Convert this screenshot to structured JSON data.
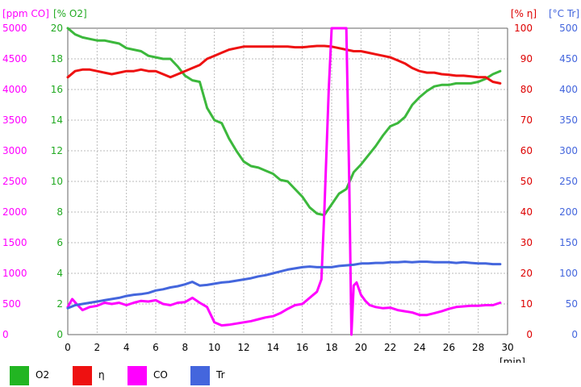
{
  "chart_data": {
    "type": "line",
    "xlabel": "[min]",
    "xlim": [
      0,
      30
    ],
    "x_ticks": [
      "0",
      "2",
      "4",
      "6",
      "8",
      "10",
      "12",
      "14",
      "16",
      "18",
      "20",
      "22",
      "24",
      "26",
      "28",
      "30"
    ],
    "axes": {
      "co": {
        "label": "[ppm CO]",
        "lim": [
          0,
          5000
        ],
        "ticks": [
          "0",
          "500",
          "1000",
          "1500",
          "2000",
          "2500",
          "3000",
          "3500",
          "4000",
          "4500",
          "5000"
        ],
        "color": "#ff00ff"
      },
      "o2": {
        "label": "[% O2]",
        "lim": [
          0,
          20
        ],
        "ticks": [
          "0",
          "2",
          "4",
          "6",
          "8",
          "10",
          "12",
          "14",
          "16",
          "18",
          "20"
        ],
        "color": "#22aa22"
      },
      "eta": {
        "label": "[% η]",
        "lim": [
          0,
          100
        ],
        "ticks": [
          "0",
          "10",
          "20",
          "30",
          "40",
          "50",
          "60",
          "70",
          "80",
          "90",
          "100"
        ],
        "color": "#dd0000"
      },
      "tr": {
        "label": "[°C Tr]",
        "lim": [
          0,
          500
        ],
        "ticks": [
          "0",
          "50",
          "100",
          "150",
          "200",
          "250",
          "300",
          "350",
          "400",
          "450",
          "500"
        ],
        "color": "#4466dd"
      }
    },
    "grid": true,
    "series": [
      {
        "name": "O2",
        "axis": "o2",
        "color": "#3cb83c",
        "x": [
          0,
          0.5,
          1,
          1.5,
          2,
          2.5,
          3,
          3.5,
          4,
          4.5,
          5,
          5.5,
          6,
          6.5,
          7,
          7.5,
          8,
          8.5,
          9,
          9.5,
          10,
          10.5,
          11,
          11.5,
          12,
          12.5,
          13,
          13.5,
          14,
          14.5,
          15,
          15.5,
          16,
          16.5,
          17,
          17.5,
          18,
          18.5,
          19,
          19.5,
          20,
          20.5,
          21,
          21.5,
          22,
          22.5,
          23,
          23.5,
          24,
          24.5,
          25,
          25.5,
          26,
          26.5,
          27,
          27.5,
          28,
          28.5,
          29,
          29.5
        ],
        "values": [
          20,
          19.6,
          19.4,
          19.3,
          19.2,
          19.2,
          19.1,
          19.0,
          18.7,
          18.6,
          18.5,
          18.2,
          18.1,
          18.0,
          18.0,
          17.5,
          16.9,
          16.6,
          16.5,
          14.8,
          14.0,
          13.8,
          12.8,
          12.0,
          11.3,
          11.0,
          10.9,
          10.7,
          10.5,
          10.1,
          10.0,
          9.5,
          9.0,
          8.3,
          7.9,
          7.8,
          8.5,
          9.2,
          9.5,
          10.6,
          11.1,
          11.7,
          12.3,
          13.0,
          13.6,
          13.8,
          14.2,
          15.0,
          15.5,
          15.9,
          16.2,
          16.3,
          16.3,
          16.4,
          16.4,
          16.4,
          16.5,
          16.7,
          17.0,
          17.2
        ]
      },
      {
        "name": "η",
        "axis": "eta",
        "color": "#ee1111",
        "x": [
          0,
          0.5,
          1,
          1.5,
          2,
          2.5,
          3,
          3.5,
          4,
          4.5,
          5,
          5.5,
          6,
          6.5,
          7,
          7.5,
          8,
          8.5,
          9,
          9.5,
          10,
          10.5,
          11,
          11.5,
          12,
          12.5,
          13,
          13.5,
          14,
          14.5,
          15,
          15.5,
          16,
          16.5,
          17,
          17.5,
          18,
          18.5,
          19,
          19.5,
          20,
          20.5,
          21,
          21.5,
          22,
          22.5,
          23,
          23.5,
          24,
          24.5,
          25,
          25.5,
          26,
          26.5,
          27,
          27.5,
          28,
          28.5,
          29,
          29.5
        ],
        "values": [
          84,
          86,
          86.5,
          86.5,
          86,
          85.5,
          85,
          85.5,
          86,
          86,
          86.5,
          86,
          86,
          85,
          84,
          85,
          86,
          87,
          88,
          90,
          91,
          92,
          93,
          93.5,
          94,
          94,
          94,
          94,
          94,
          94,
          94,
          93.8,
          93.8,
          94,
          94.2,
          94.2,
          94,
          93.5,
          93,
          92.5,
          92.5,
          92,
          91.5,
          91,
          90.5,
          89.5,
          88.5,
          87,
          86,
          85.5,
          85.5,
          85,
          84.8,
          84.5,
          84.5,
          84.3,
          84,
          84,
          82.5,
          82
        ]
      },
      {
        "name": "CO",
        "axis": "co",
        "color": "#ff00ff",
        "x": [
          0,
          0.3,
          0.6,
          1,
          1.5,
          2,
          2.5,
          3,
          3.5,
          4,
          4.5,
          5,
          5.5,
          6,
          6.5,
          7,
          7.5,
          8,
          8.5,
          9,
          9.5,
          10,
          10.5,
          11,
          11.5,
          12,
          12.5,
          13,
          13.5,
          14,
          14.5,
          15,
          15.5,
          16,
          16.5,
          17,
          17.3,
          17.5,
          17.8,
          18.0,
          18.2,
          18.5,
          19.0,
          19.2,
          19.35,
          19.5,
          19.7,
          20,
          20.3,
          20.6,
          21,
          21.5,
          22,
          22.5,
          23,
          23.5,
          24,
          24.5,
          25,
          25.5,
          26,
          26.5,
          27,
          27.5,
          28,
          28.5,
          29,
          29.5
        ],
        "values": [
          450,
          580,
          500,
          400,
          450,
          470,
          520,
          500,
          520,
          480,
          520,
          550,
          540,
          560,
          500,
          480,
          520,
          530,
          600,
          520,
          450,
          200,
          150,
          160,
          180,
          200,
          220,
          250,
          280,
          300,
          350,
          420,
          480,
          500,
          600,
          700,
          900,
          2000,
          4000,
          5000,
          5000,
          5000,
          5000,
          2500,
          0,
          800,
          850,
          650,
          550,
          480,
          450,
          430,
          440,
          400,
          380,
          360,
          320,
          320,
          350,
          380,
          420,
          450,
          460,
          470,
          470,
          480,
          480,
          520
        ]
      },
      {
        "name": "Tr",
        "axis": "tr",
        "color": "#4466dd",
        "x": [
          0,
          0.5,
          1,
          1.5,
          2,
          2.5,
          3,
          3.5,
          4,
          4.5,
          5,
          5.5,
          6,
          6.5,
          7,
          7.5,
          8,
          8.5,
          9,
          9.5,
          10,
          10.5,
          11,
          11.5,
          12,
          12.5,
          13,
          13.5,
          14,
          14.5,
          15,
          15.5,
          16,
          16.5,
          17,
          17.5,
          18,
          18.5,
          19,
          19.5,
          20,
          20.5,
          21,
          21.5,
          22,
          22.5,
          23,
          23.5,
          24,
          24.5,
          25,
          25.5,
          26,
          26.5,
          27,
          27.5,
          28,
          28.5,
          29,
          29.5
        ],
        "values": [
          43,
          48,
          50,
          52,
          54,
          56,
          58,
          60,
          63,
          65,
          66,
          68,
          72,
          74,
          77,
          79,
          82,
          86,
          80,
          81,
          83,
          85,
          86,
          88,
          90,
          92,
          95,
          97,
          100,
          103,
          106,
          108,
          110,
          111,
          110,
          110,
          110,
          112,
          113,
          114,
          116,
          116,
          117,
          117,
          118,
          118,
          119,
          118,
          119,
          119,
          118,
          118,
          118,
          117,
          118,
          117,
          116,
          116,
          115,
          115
        ]
      }
    ],
    "legend": [
      {
        "name": "O2",
        "color": "#22b522"
      },
      {
        "name": "η",
        "color": "#ee1111"
      },
      {
        "name": "CO",
        "color": "#ff00ff"
      },
      {
        "name": "Tr",
        "color": "#4466dd"
      }
    ],
    "legend_placement": "bottom"
  }
}
